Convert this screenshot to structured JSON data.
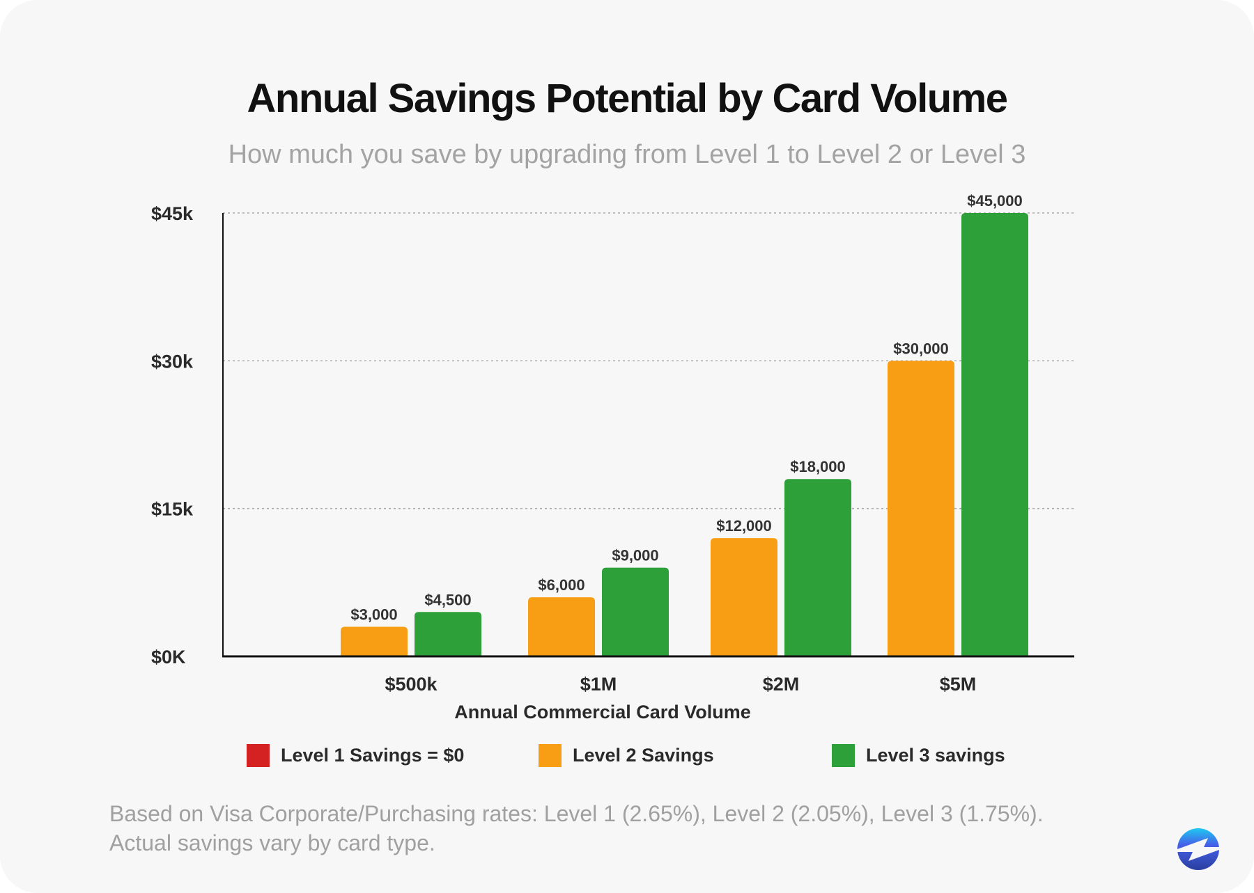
{
  "chart_data": {
    "type": "bar",
    "title": "Annual Savings Potential by Card Volume",
    "subtitle": "How much you save by upgrading from Level 1 to Level 2 or Level 3",
    "xlabel": "Annual Commercial Card Volume",
    "ylabel": "",
    "categories": [
      "$500k",
      "$1M",
      "$2M",
      "$5M"
    ],
    "ylim": [
      0,
      45000
    ],
    "yticks": [
      0,
      15000,
      30000,
      45000
    ],
    "ytick_labels": [
      "$0K",
      "$15k",
      "$30k",
      "$45k"
    ],
    "grid": true,
    "legend_placement": "bottom",
    "series": [
      {
        "name": "Level 1 Savings = $0",
        "color": "#D42121",
        "values": [
          0,
          0,
          0,
          0
        ],
        "labels": [
          "",
          "",
          "",
          ""
        ]
      },
      {
        "name": "Level 2 Savings",
        "color": "#F89E14",
        "values": [
          3000,
          6000,
          12000,
          30000
        ],
        "labels": [
          "$3,000",
          "$6,000",
          "$12,000",
          "$30,000"
        ]
      },
      {
        "name": "Level 3 savings",
        "color": "#2EA03A",
        "values": [
          4500,
          9000,
          18000,
          45000
        ],
        "labels": [
          "$4,500",
          "$9,000",
          "$18,000",
          "$45,000"
        ]
      }
    ]
  },
  "footnote": {
    "line1": "Based on Visa Corporate/Purchasing rates: Level 1 (2.65%), Level 2 (2.05%), Level 3 (1.75%).",
    "line2": "Actual savings vary by card type."
  },
  "logo": {
    "icon": "lightning-bolt-circle-logo",
    "colors": [
      "#1FC8F0",
      "#4560E8",
      "#2A3FA0"
    ]
  }
}
